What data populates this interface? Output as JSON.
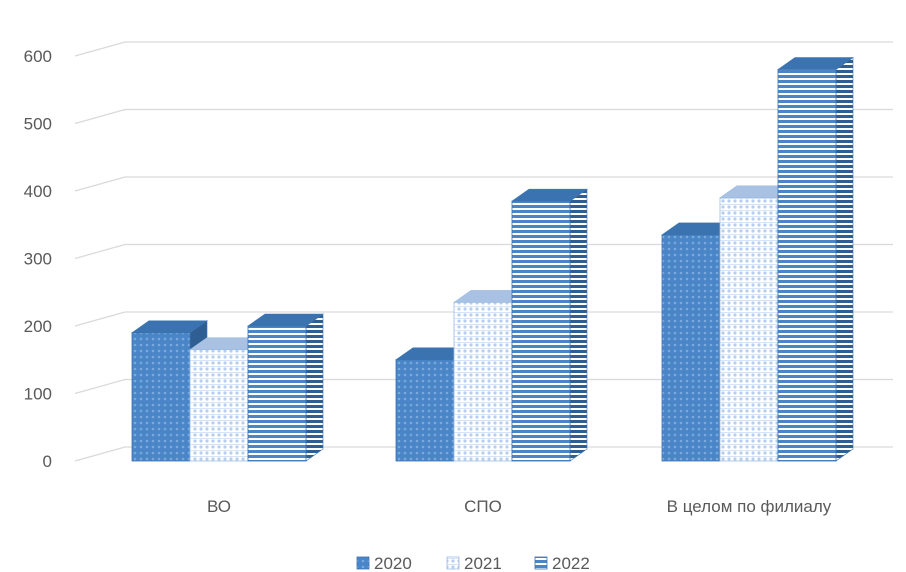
{
  "chart_data": {
    "type": "bar",
    "title": "",
    "xlabel": "",
    "ylabel": "",
    "ylim": [
      0,
      600
    ],
    "yticks": [
      0,
      100,
      200,
      300,
      400,
      500,
      600
    ],
    "grid": true,
    "legend_position": "bottom",
    "categories": [
      "ВО",
      "СПО",
      "В целом по филиалу"
    ],
    "series": [
      {
        "name": "2020",
        "values": [
          190,
          150,
          335
        ]
      },
      {
        "name": "2021",
        "values": [
          165,
          235,
          390
        ]
      },
      {
        "name": "2022",
        "values": [
          200,
          385,
          580
        ]
      }
    ]
  },
  "colors": {
    "dark_blue": "#4a86c7",
    "light_blue": "#bcd3ef",
    "dark_side": "#2f5f92",
    "grid": "#d9d9d9"
  }
}
